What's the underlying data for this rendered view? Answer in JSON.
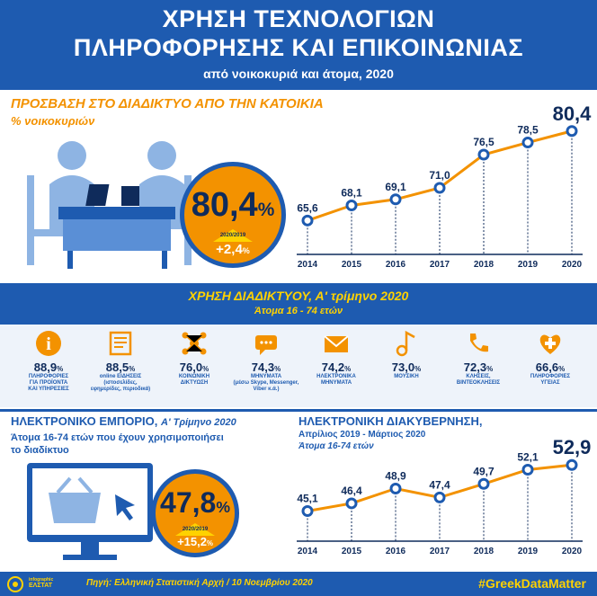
{
  "header": {
    "title_line1": "ΧΡΗΣΗ ΤΕΧΝΟΛΟΓΙΩΝ",
    "title_line2": "ΠΛΗΡΟΦΟΡΗΣΗΣ ΚΑΙ ΕΠΙΚΟΙΝΩΝΙΑΣ",
    "subtitle": "από νοικοκυριά και άτομα, 2020"
  },
  "access": {
    "title": "ΠΡΟΣΒΑΣΗ ΣΤΟ ΔΙΑΔΙΚΤΥΟ ΑΠΟ ΤΗΝ ΚΑΤΟΙΚΙΑ",
    "subtitle": "% νοικοκυριών",
    "highlight_value": "80,4",
    "highlight_unit": "%",
    "change_period": "2020/2019",
    "change_value": "+2,4",
    "change_unit": "%"
  },
  "usage": {
    "title": "ΧΡΗΣΗ ΔΙΑΔΙΚΤΥΟΥ, Α' τρίμηνο 2020",
    "subtitle": "Άτομα 16 - 74 ετών",
    "items": [
      {
        "value": "88,9",
        "unit": "%",
        "label1": "ΠΛΗΡΟΦΟΡΙΕΣ",
        "label2": "ΓΙΑ ΠΡΟΪΟΝΤΑ",
        "label3": "ΚΑΙ ΥΠΗΡΕΣΙΕΣ",
        "icon": "info-icon"
      },
      {
        "value": "88,5",
        "unit": "%",
        "label1": "online ΕΙΔΗΣΕΙΣ",
        "label2": "(ιστοσελίδες,",
        "label3": "εφημερίδες, περιοδικά)",
        "icon": "news-icon"
      },
      {
        "value": "76,0",
        "unit": "%",
        "label1": "ΚΟΙΝΩΝΙΚΗ",
        "label2": "ΔΙΚΤΥΩΣΗ",
        "label3": "",
        "icon": "network-icon"
      },
      {
        "value": "74,3",
        "unit": "%",
        "label1": "ΜΗΝΥΜΑΤΑ",
        "label2": "(μέσω Skype, Messenger,",
        "label3": "Viber κ.ά.)",
        "icon": "chat-icon"
      },
      {
        "value": "74,2",
        "unit": "%",
        "label1": "ΗΛΕΚΤΡΟΝΙΚΑ",
        "label2": "ΜΗΝΥΜΑΤΑ",
        "label3": "",
        "icon": "email-icon"
      },
      {
        "value": "73,0",
        "unit": "%",
        "label1": "ΜΟΥΣΙΚΗ",
        "label2": "",
        "label3": "",
        "icon": "music-icon"
      },
      {
        "value": "72,3",
        "unit": "%",
        "label1": "ΚΛΗΣΕΙΣ,",
        "label2": "ΒΙΝΤΕΟΚΛΗΣΕΙΣ",
        "label3": "",
        "icon": "call-icon"
      },
      {
        "value": "66,6",
        "unit": "%",
        "label1": "ΠΛΗΡΟΦΟΡΙΕΣ",
        "label2": "ΥΓΕΙΑΣ",
        "label3": "",
        "icon": "health-icon"
      }
    ]
  },
  "ecommerce": {
    "title": "ΗΛΕΚΤΡΟΝΙΚΟ ΕΜΠΟΡΙΟ,",
    "title_period": "Α' Τρίμηνο 2020",
    "subtitle": "Άτομα 16-74 ετών που έχουν χρησιμοποιήσει το διαδίκτυο",
    "highlight_value": "47,8",
    "highlight_unit": "%",
    "change_period": "2020/2019",
    "change_value": "+15,2",
    "change_unit": "%"
  },
  "egov": {
    "title": "ΗΛΕΚΤΡΟΝΙΚΗ ΔΙΑΚΥΒΕΡΝΗΣΗ,",
    "subtitle1": "Απρίλιος 2019 - Μάρτιος 2020",
    "subtitle2": "Άτομα 16-74 ετών"
  },
  "chart_data": [
    {
      "type": "line",
      "x": [
        "2014",
        "2015",
        "2016",
        "2017",
        "2018",
        "2019",
        "2020"
      ],
      "values": [
        65.6,
        68.1,
        69.1,
        71.0,
        76.5,
        78.5,
        80.4
      ],
      "labels": [
        "65,6",
        "68,1",
        "69,1",
        "71,0",
        "76,5",
        "78,5",
        "80,4"
      ],
      "ylim": [
        60,
        82
      ]
    },
    {
      "type": "line",
      "x": [
        "2014",
        "2015",
        "2016",
        "2017",
        "2018",
        "2019",
        "2020"
      ],
      "values": [
        45.1,
        46.4,
        48.9,
        47.4,
        49.7,
        52.1,
        52.9
      ],
      "labels": [
        "45,1",
        "46,4",
        "48,9",
        "47,4",
        "49,7",
        "52,1",
        "52,9"
      ],
      "ylim": [
        40,
        54
      ]
    }
  ],
  "footer": {
    "logo_line1": "infographic",
    "logo_line2": "ΕΛΣΤΑΤ",
    "source": "Πηγή: Ελληνική Στατιστική Αρχή  /  10 Νοεμβρίου 2020",
    "hashtag": "#GreekDataMatter"
  },
  "colors": {
    "blue": "#1e5bb0",
    "orange": "#f39200",
    "yellow": "#ffd200",
    "navy": "#0f2b5b"
  }
}
